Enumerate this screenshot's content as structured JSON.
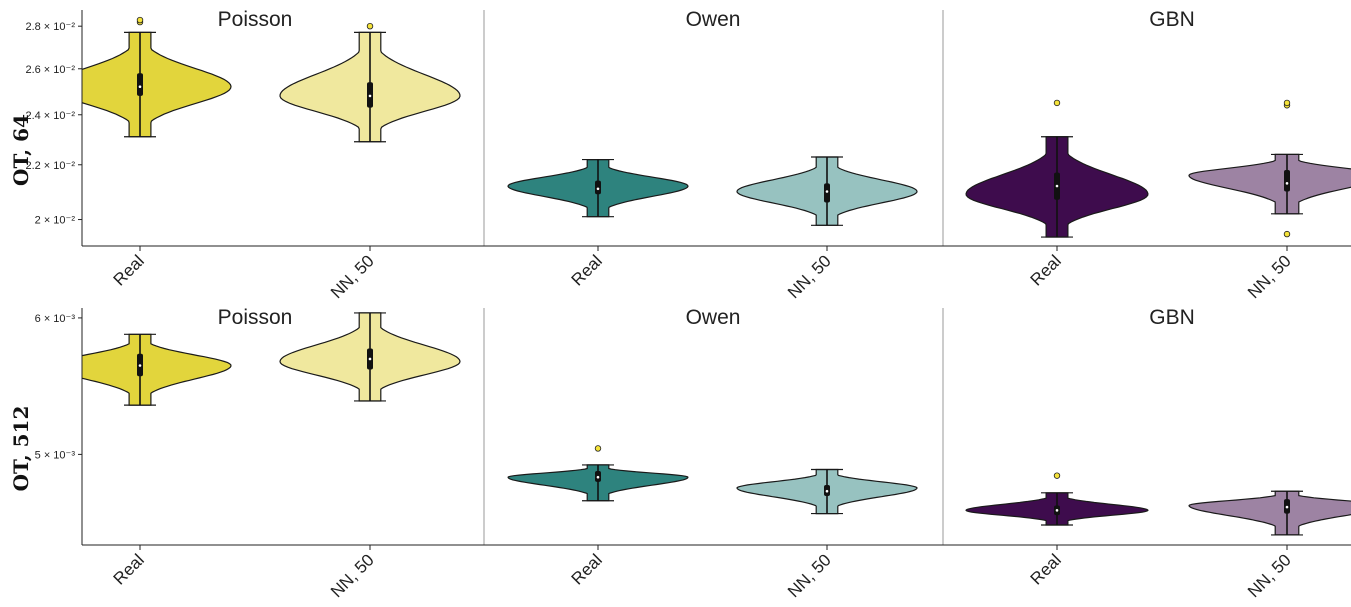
{
  "chart_data": [
    {
      "type": "violin",
      "row_label": "OT, 64",
      "y_scale": "log",
      "ylim": [
        0.0191,
        0.0288
      ],
      "y_ticks": [
        {
          "value": 0.028,
          "label": "2.8 × 10⁻²"
        },
        {
          "value": 0.026,
          "label": "2.6 × 10⁻²"
        },
        {
          "value": 0.024,
          "label": "2.4 × 10⁻²"
        },
        {
          "value": 0.022,
          "label": "2.2 × 10⁻²"
        },
        {
          "value": 0.02,
          "label": "2 × 10⁻²"
        }
      ],
      "panels": [
        {
          "title": "Poisson",
          "violins": [
            {
              "category": "Real",
              "color": "#e2d53c",
              "min": 0.0231,
              "q1": 0.0248,
              "median": 0.0252,
              "q3": 0.0258,
              "max": 0.0277,
              "mode": 0.0252,
              "half_width": 0.91,
              "outliers": [
                0.0282,
                0.0283
              ]
            },
            {
              "category": "NN, 50",
              "color": "#f0e89e",
              "min": 0.0229,
              "q1": 0.0243,
              "median": 0.0248,
              "q3": 0.0254,
              "max": 0.0277,
              "mode": 0.0248,
              "half_width": 0.9,
              "outliers": [
                0.028
              ]
            }
          ]
        },
        {
          "title": "Owen",
          "violins": [
            {
              "category": "Real",
              "color": "#2e837e",
              "min": 0.0201,
              "q1": 0.0209,
              "median": 0.0211,
              "q3": 0.0214,
              "max": 0.0222,
              "mode": 0.0212,
              "half_width": 0.9,
              "outliers": []
            },
            {
              "category": "NN, 50",
              "color": "#97c2c0",
              "min": 0.0198,
              "q1": 0.0206,
              "median": 0.021,
              "q3": 0.0213,
              "max": 0.0223,
              "mode": 0.021,
              "half_width": 0.9,
              "outliers": []
            }
          ]
        },
        {
          "title": "GBN",
          "violins": [
            {
              "category": "Real",
              "color": "#3e0c4d",
              "min": 0.0194,
              "q1": 0.0207,
              "median": 0.0212,
              "q3": 0.0217,
              "max": 0.0231,
              "mode": 0.0209,
              "half_width": 0.91,
              "outliers": [
                0.0245
              ]
            },
            {
              "category": "NN, 50",
              "color": "#9d83a3",
              "min": 0.0202,
              "q1": 0.021,
              "median": 0.0213,
              "q3": 0.0218,
              "max": 0.0224,
              "mode": 0.0216,
              "half_width": 0.98,
              "outliers": [
                0.0244,
                0.0245,
                0.0195
              ]
            }
          ]
        }
      ]
    },
    {
      "type": "violin",
      "row_label": "OT, 512",
      "y_scale": "log",
      "ylim": [
        0.00443,
        0.00608
      ],
      "y_ticks": [
        {
          "value": 0.006,
          "label": "6 × 10⁻³"
        },
        {
          "value": 0.005,
          "label": "5 × 10⁻³"
        }
      ],
      "panels": [
        {
          "title": "Poisson",
          "violins": [
            {
              "category": "Real",
              "color": "#e2d53c",
              "min": 0.00534,
              "q1": 0.00555,
              "median": 0.00563,
              "q3": 0.00572,
              "max": 0.00587,
              "mode": 0.00563,
              "half_width": 0.91,
              "outliers": []
            },
            {
              "category": "NN, 50",
              "color": "#f0e89e",
              "min": 0.00537,
              "q1": 0.0056,
              "median": 0.00568,
              "q3": 0.00576,
              "max": 0.00604,
              "mode": 0.00566,
              "half_width": 0.9,
              "outliers": []
            }
          ]
        },
        {
          "title": "Owen",
          "violins": [
            {
              "category": "Real",
              "color": "#2e837e",
              "min": 0.0047,
              "q1": 0.00482,
              "median": 0.00485,
              "q3": 0.00489,
              "max": 0.00493,
              "mode": 0.00485,
              "half_width": 0.9,
              "outliers": [
                0.00504
              ]
            },
            {
              "category": "NN, 50",
              "color": "#97c2c0",
              "min": 0.00462,
              "q1": 0.00473,
              "median": 0.00476,
              "q3": 0.0048,
              "max": 0.0049,
              "mode": 0.00478,
              "half_width": 0.9,
              "outliers": []
            }
          ]
        },
        {
          "title": "GBN",
          "violins": [
            {
              "category": "Real",
              "color": "#3e0c4d",
              "min": 0.00455,
              "q1": 0.00461,
              "median": 0.00464,
              "q3": 0.00467,
              "max": 0.00475,
              "mode": 0.00464,
              "half_width": 0.91,
              "outliers": [
                0.00486
              ]
            },
            {
              "category": "NN, 50",
              "color": "#9d83a3",
              "min": 0.00449,
              "q1": 0.00462,
              "median": 0.00466,
              "q3": 0.00471,
              "max": 0.00476,
              "mode": 0.00467,
              "half_width": 0.98,
              "outliers": []
            }
          ]
        }
      ]
    }
  ],
  "outlier_color": "#f5e33a"
}
